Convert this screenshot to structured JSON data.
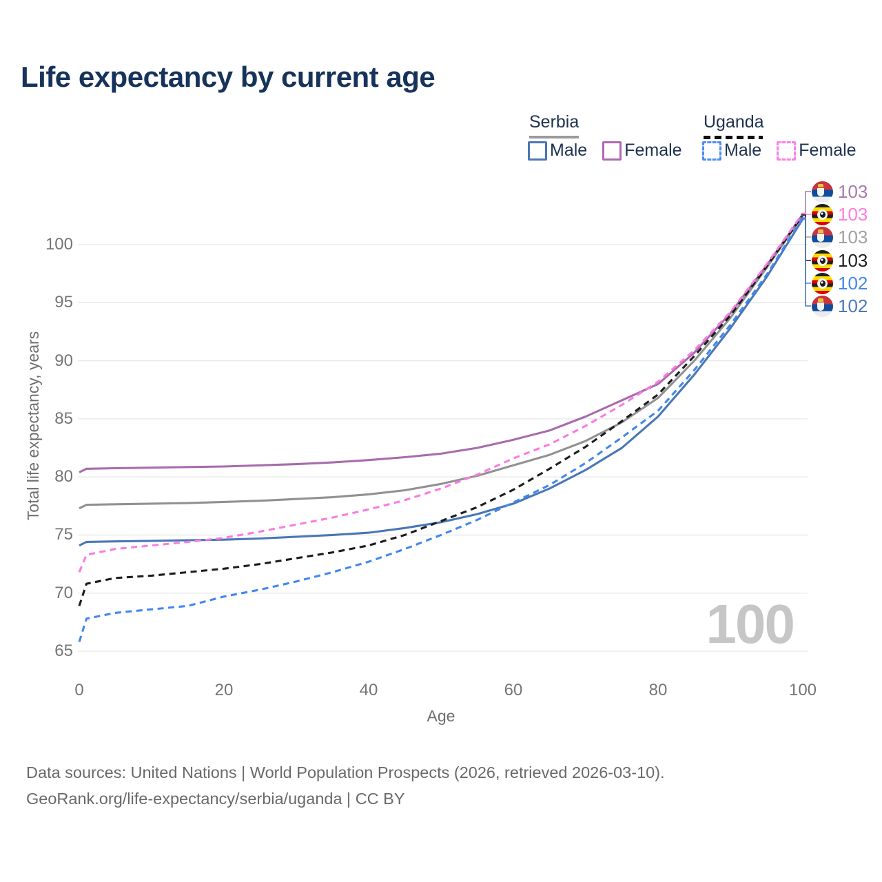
{
  "title": "Life expectancy by current age",
  "legend": {
    "groups": [
      {
        "country": "Serbia",
        "line_style": "solid",
        "underline_color": "#9b9b9b",
        "entries": [
          {
            "label": "Male",
            "color": "#4a77b5"
          },
          {
            "label": "Female",
            "color": "#b068ae"
          }
        ]
      },
      {
        "country": "Uganda",
        "line_style": "dashed",
        "underline_color": "#111111",
        "entries": [
          {
            "label": "Male",
            "color": "#4d8df0"
          },
          {
            "label": "Female",
            "color": "#fb80e4"
          }
        ]
      }
    ]
  },
  "y_axis": {
    "title": "Total life expectancy, years",
    "ticks": [
      65,
      70,
      75,
      80,
      85,
      90,
      95,
      100
    ]
  },
  "x_axis": {
    "title": "Age",
    "ticks": [
      0,
      20,
      40,
      60,
      80,
      100
    ]
  },
  "watermark": "100",
  "end_labels": [
    {
      "flag": "serbia",
      "series": "Serbia Female",
      "value": "103",
      "color": "#a87aab"
    },
    {
      "flag": "uganda",
      "series": "Uganda Female",
      "value": "103",
      "color": "#ff7ce0"
    },
    {
      "flag": "serbia",
      "series": "Serbia Both sexes",
      "value": "103",
      "color": "#a0a0a0"
    },
    {
      "flag": "uganda",
      "series": "Uganda Both sexes",
      "value": "103",
      "color": "#1f1f1f"
    },
    {
      "flag": "uganda",
      "series": "Uganda Male",
      "value": "102",
      "color": "#4488e8"
    },
    {
      "flag": "serbia",
      "series": "Serbia Male",
      "value": "102",
      "color": "#4a78b8"
    }
  ],
  "footer": {
    "line1": "Data sources: United Nations | World Population Prospects (2026, retrieved 2026-03-10).",
    "line2": "GeoRank.org/life-expectancy/serbia/uganda | CC BY"
  },
  "chart_data": {
    "type": "line",
    "title": "Life expectancy by current age",
    "xlabel": "Age",
    "ylabel": "Total life expectancy, years",
    "xlim": [
      0,
      100
    ],
    "ylim": [
      65,
      103.5
    ],
    "grid": "horizontal",
    "legend_position": "top-right",
    "x": [
      0,
      1,
      5,
      10,
      15,
      20,
      25,
      30,
      35,
      40,
      45,
      50,
      55,
      60,
      65,
      70,
      75,
      80,
      85,
      90,
      95,
      100
    ],
    "series": [
      {
        "name": "Serbia Male",
        "country": "Serbia",
        "sex": "male",
        "style": "solid",
        "color": "#4a77b5",
        "values": [
          74.1,
          74.4,
          74.45,
          74.5,
          74.55,
          74.6,
          74.7,
          74.85,
          75.0,
          75.2,
          75.6,
          76.1,
          76.8,
          77.7,
          79.0,
          80.6,
          82.5,
          85.2,
          88.8,
          92.8,
          97.2,
          102.2
        ]
      },
      {
        "name": "Serbia Female",
        "country": "Serbia",
        "sex": "female",
        "style": "solid",
        "color": "#a86bad",
        "values": [
          80.4,
          80.7,
          80.75,
          80.8,
          80.85,
          80.9,
          81.0,
          81.1,
          81.25,
          81.45,
          81.7,
          82.0,
          82.5,
          83.2,
          84.0,
          85.2,
          86.6,
          88.0,
          90.7,
          94.1,
          98.2,
          102.6
        ]
      },
      {
        "name": "Serbia Both sexes",
        "country": "Serbia",
        "sex": "both",
        "style": "solid",
        "color": "#919191",
        "values": [
          77.3,
          77.6,
          77.65,
          77.7,
          77.75,
          77.85,
          77.95,
          78.1,
          78.25,
          78.5,
          78.85,
          79.4,
          80.1,
          81.0,
          81.9,
          83.1,
          84.7,
          86.8,
          90.0,
          93.7,
          98.0,
          102.5
        ]
      },
      {
        "name": "Uganda Male",
        "country": "Uganda",
        "sex": "male",
        "style": "dashed",
        "color": "#4287f0",
        "values": [
          65.8,
          67.8,
          68.3,
          68.6,
          68.9,
          69.7,
          70.3,
          71.0,
          71.8,
          72.7,
          73.8,
          75.0,
          76.3,
          77.8,
          79.3,
          81.2,
          83.4,
          85.7,
          89.2,
          93.1,
          97.4,
          102.3
        ]
      },
      {
        "name": "Uganda Female",
        "country": "Uganda",
        "sex": "female",
        "style": "dashed",
        "color": "#fa7ce0",
        "values": [
          71.8,
          73.3,
          73.8,
          74.1,
          74.4,
          74.75,
          75.3,
          75.9,
          76.5,
          77.2,
          78.0,
          79.0,
          80.2,
          81.6,
          82.8,
          84.4,
          86.2,
          88.2,
          90.9,
          94.2,
          98.3,
          102.7
        ]
      },
      {
        "name": "Uganda Both sexes",
        "country": "Uganda",
        "sex": "both",
        "style": "dashed",
        "color": "#1c1c1c",
        "values": [
          68.9,
          70.8,
          71.3,
          71.5,
          71.8,
          72.1,
          72.5,
          73.0,
          73.5,
          74.1,
          75.0,
          76.2,
          77.4,
          78.9,
          80.7,
          82.6,
          84.8,
          87.1,
          90.4,
          93.9,
          98.1,
          102.55
        ]
      }
    ]
  }
}
